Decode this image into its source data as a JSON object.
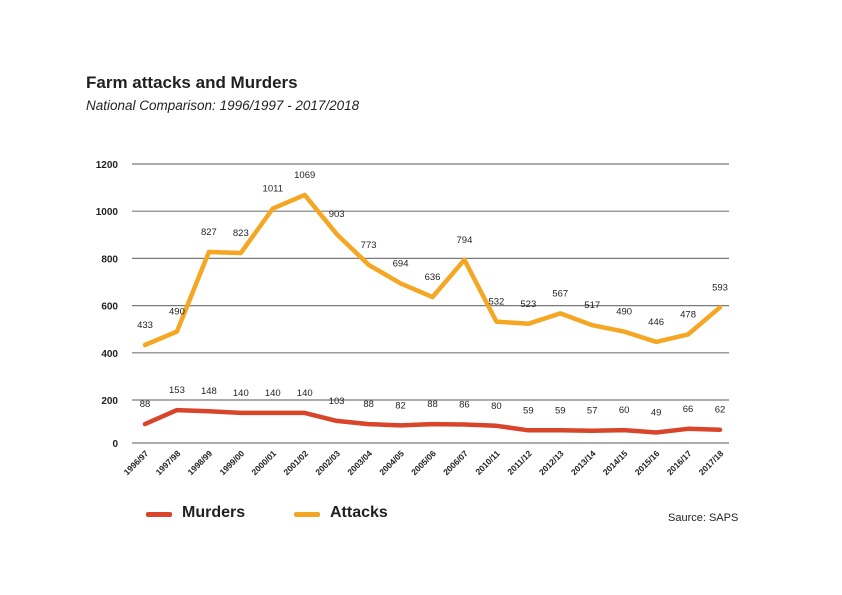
{
  "title": "Farm attacks and Murders",
  "subtitle": "National Comparison: 1996/1997 - 2017/2018",
  "source": "Saurce: SAPS",
  "colors": {
    "murders": "#d8452a",
    "attacks": "#f5a623",
    "grid": "#7a7a7a",
    "text": "#231f20"
  },
  "legend": [
    {
      "label": "Murders",
      "color": "#d8452a"
    },
    {
      "label": "Attacks",
      "color": "#f5a623"
    }
  ],
  "chart_data": {
    "type": "line",
    "title": "Farm attacks and Murders",
    "subtitle": "National Comparison: 1996/1997 - 2017/2018",
    "categories": [
      "1996/97",
      "1997/98",
      "1998/99",
      "1999/00",
      "2000/01",
      "2001/02",
      "2002/03",
      "2003/04",
      "2004/05",
      "2005/06",
      "2006/07",
      "2010/11",
      "2011/12",
      "2012/13",
      "2013/14",
      "2014/15",
      "2015/16",
      "2016/17",
      "2017/18"
    ],
    "yticks": [
      "1200",
      "1000",
      "800",
      "600",
      "400",
      "200",
      "0"
    ],
    "ylim": [
      0,
      1200
    ],
    "grid": true,
    "legend_position": "bottom-left",
    "series": [
      {
        "name": "Murders",
        "color": "#d8452a",
        "values": [
          88,
          153,
          148,
          140,
          140,
          140,
          103,
          88,
          82,
          88,
          86,
          80,
          59,
          59,
          57,
          60,
          49,
          66,
          62
        ],
        "labels": [
          "88",
          "153",
          "148",
          "140",
          "140",
          "140",
          "103",
          "88",
          "82",
          "88",
          "86",
          "80",
          "59",
          "59",
          "57",
          "60",
          "49",
          "66",
          "62"
        ]
      },
      {
        "name": "Attacks",
        "color": "#f5a623",
        "values": [
          433,
          490,
          827,
          823,
          1011,
          1069,
          903,
          773,
          694,
          636,
          794,
          532,
          523,
          567,
          517,
          490,
          446,
          478,
          593
        ],
        "labels": [
          "433",
          "490",
          "827",
          "823",
          "1011",
          "1069",
          "903",
          "773",
          "694",
          "636",
          "794",
          "532",
          "523",
          "567",
          "517",
          "490",
          "446",
          "478",
          "593"
        ]
      }
    ]
  }
}
